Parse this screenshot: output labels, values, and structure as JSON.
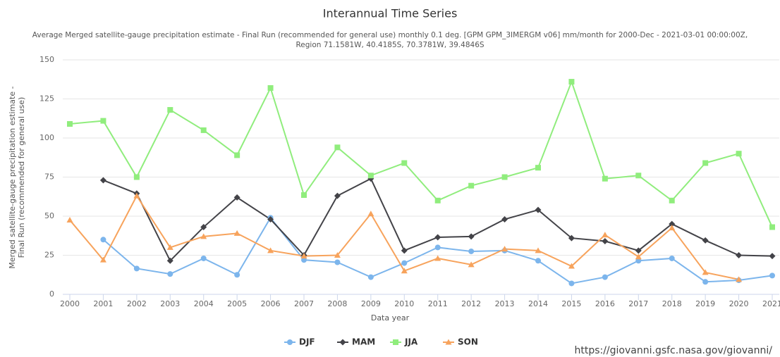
{
  "chart_data": {
    "type": "line",
    "title": "Interannual Time Series",
    "subtitle": [
      "Average Merged satellite-gauge precipitation estimate - Final Run (recommended for general use) monthly 0.1 deg. [GPM GPM_3IMERGM v06] mm/month for 2000-Dec - 2021-03-01 00:00:00Z,",
      "Region 71.1581W, 40.4185S, 70.3781W, 39.4846S"
    ],
    "y_label": [
      "Merged satellite-gauge precipitation estimate -",
      "Final Run (recommended for general use)"
    ],
    "x_label": "Data year",
    "source": "https://giovanni.gsfc.nasa.gov/giovanni/",
    "categories": [
      "2000",
      "2001",
      "2002",
      "2003",
      "2004",
      "2005",
      "2006",
      "2007",
      "2008",
      "2009",
      "2010",
      "2011",
      "2012",
      "2013",
      "2014",
      "2015",
      "2016",
      "2017",
      "2018",
      "2019",
      "2020",
      "2021"
    ],
    "ylim": [
      0,
      150
    ],
    "yticks": [
      0,
      25,
      50,
      75,
      100,
      125,
      150
    ],
    "grid": true,
    "legend": "bottom",
    "series": [
      {
        "name": "DJF",
        "color": "#7cb5ec",
        "marker": "circle",
        "values": [
          null,
          35,
          16.5,
          13,
          23,
          12.5,
          49,
          22,
          20.5,
          11,
          20,
          30,
          27.5,
          28,
          21.5,
          7,
          11,
          21.5,
          23,
          8,
          9,
          12
        ]
      },
      {
        "name": "MAM",
        "color": "#434348",
        "marker": "diamond",
        "values": [
          null,
          73,
          64.5,
          21.5,
          43,
          62,
          48,
          25,
          63,
          74,
          28,
          36.5,
          37,
          48,
          54,
          36,
          34,
          28,
          45,
          34.5,
          25,
          24.5
        ]
      },
      {
        "name": "JJA",
        "color": "#90ed7d",
        "marker": "square",
        "values": [
          109,
          111,
          75,
          118,
          105,
          89,
          132,
          63.5,
          94,
          76,
          84,
          60,
          69.5,
          75,
          81,
          136,
          74,
          76,
          60,
          84,
          90,
          43
        ]
      },
      {
        "name": "SON",
        "color": "#f7a35c",
        "marker": "triangle",
        "values": [
          47.5,
          22,
          63,
          30,
          37,
          39,
          28,
          24.5,
          25,
          51.5,
          15,
          23,
          19,
          29,
          28,
          18,
          38,
          24,
          42.5,
          14,
          9.5,
          null
        ]
      }
    ]
  }
}
